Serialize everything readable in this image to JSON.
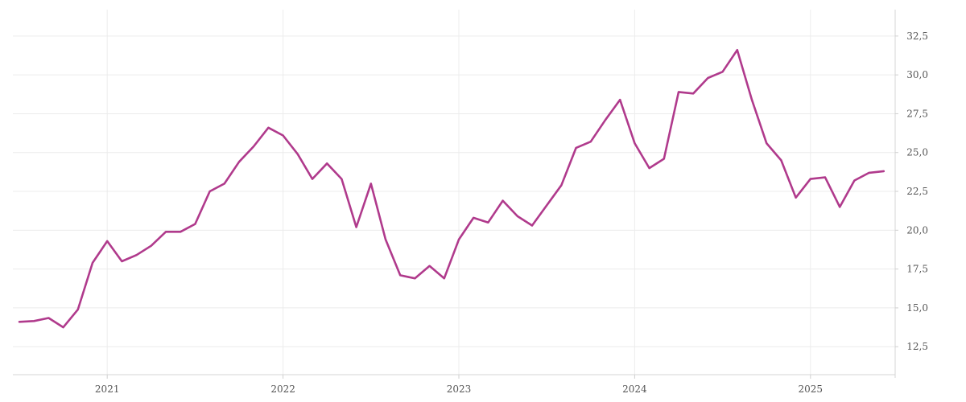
{
  "chart_data": {
    "type": "line",
    "title": "",
    "xlabel": "",
    "ylabel": "",
    "x_tick_labels": [
      "2021",
      "2022",
      "2023",
      "2024",
      "2025"
    ],
    "y_tick_labels": [
      "12,5",
      "15,0",
      "17,5",
      "20,0",
      "22,5",
      "25,0",
      "27,5",
      "30,0",
      "32,5"
    ],
    "y_ticks": [
      12.5,
      15.0,
      17.5,
      20.0,
      22.5,
      25.0,
      27.5,
      30.0,
      32.5
    ],
    "ylim": [
      10.7,
      34.2
    ],
    "xlim": [
      "2020-07",
      "2025-06"
    ],
    "grid": true,
    "y_axis_position": "right",
    "series": [
      {
        "color": "#b03a8c",
        "points": [
          [
            "2020-07",
            14.1
          ],
          [
            "2020-08",
            14.15
          ],
          [
            "2020-09",
            14.35
          ],
          [
            "2020-10",
            13.75
          ],
          [
            "2020-11",
            14.9
          ],
          [
            "2020-12",
            17.9
          ],
          [
            "2021-01",
            19.3
          ],
          [
            "2021-02",
            18.0
          ],
          [
            "2021-03",
            18.4
          ],
          [
            "2021-04",
            19.0
          ],
          [
            "2021-05",
            19.9
          ],
          [
            "2021-06",
            19.9
          ],
          [
            "2021-07",
            20.4
          ],
          [
            "2021-08",
            22.5
          ],
          [
            "2021-09",
            23.0
          ],
          [
            "2021-10",
            24.4
          ],
          [
            "2021-11",
            25.4
          ],
          [
            "2021-12",
            26.6
          ],
          [
            "2022-01",
            26.1
          ],
          [
            "2022-02",
            24.9
          ],
          [
            "2022-03",
            23.3
          ],
          [
            "2022-04",
            24.3
          ],
          [
            "2022-05",
            23.3
          ],
          [
            "2022-06",
            20.2
          ],
          [
            "2022-07",
            23.0
          ],
          [
            "2022-08",
            19.4
          ],
          [
            "2022-09",
            17.1
          ],
          [
            "2022-10",
            16.9
          ],
          [
            "2022-11",
            17.7
          ],
          [
            "2022-12",
            16.9
          ],
          [
            "2023-01",
            19.4
          ],
          [
            "2023-02",
            20.8
          ],
          [
            "2023-03",
            20.5
          ],
          [
            "2023-04",
            21.9
          ],
          [
            "2023-05",
            20.9
          ],
          [
            "2023-06",
            20.3
          ],
          [
            "2023-07",
            21.6
          ],
          [
            "2023-08",
            22.9
          ],
          [
            "2023-09",
            25.3
          ],
          [
            "2023-10",
            25.7
          ],
          [
            "2023-11",
            27.1
          ],
          [
            "2023-12",
            28.4
          ],
          [
            "2024-01",
            25.6
          ],
          [
            "2024-02",
            24.0
          ],
          [
            "2024-03",
            24.6
          ],
          [
            "2024-04",
            28.9
          ],
          [
            "2024-05",
            28.8
          ],
          [
            "2024-06",
            29.8
          ],
          [
            "2024-07",
            30.2
          ],
          [
            "2024-08",
            31.6
          ],
          [
            "2024-09",
            28.4
          ],
          [
            "2024-10",
            25.6
          ],
          [
            "2024-11",
            24.5
          ],
          [
            "2024-12",
            22.1
          ],
          [
            "2025-01",
            23.3
          ],
          [
            "2025-02",
            23.4
          ],
          [
            "2025-03",
            21.5
          ],
          [
            "2025-04",
            23.2
          ],
          [
            "2025-05",
            23.7
          ],
          [
            "2025-06",
            23.8
          ]
        ]
      }
    ]
  }
}
